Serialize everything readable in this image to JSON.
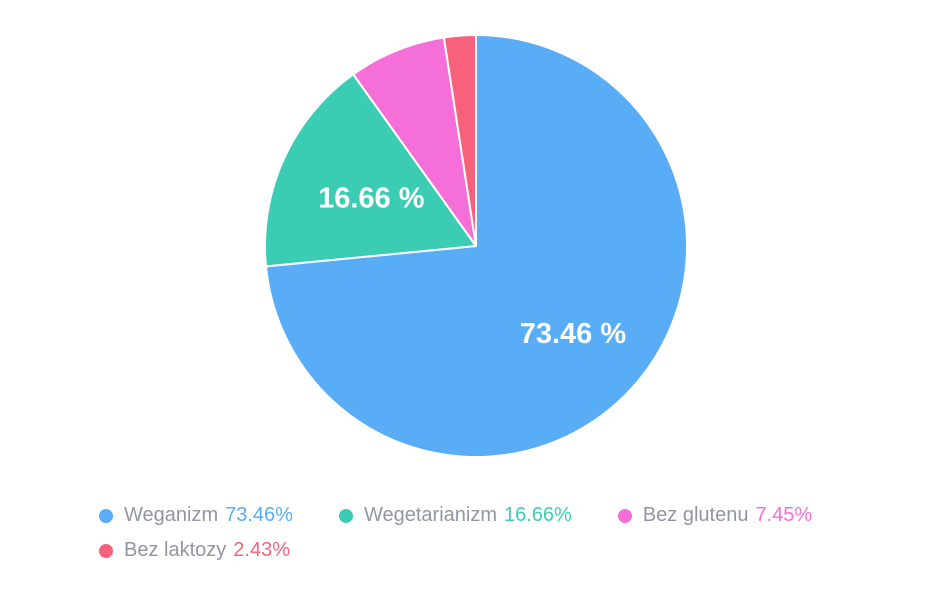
{
  "chart_data": {
    "type": "pie",
    "title": "",
    "legend_position": "bottom",
    "direction": "clockwise",
    "start_angle_deg": 0,
    "background": "#ffffff",
    "slice_border_color": "#ffffff",
    "slice_border_width": 2,
    "label_color": "#ffffff",
    "legend_text_color": "#9195a6",
    "pie_center": {
      "x": 476,
      "y": 246,
      "radius": 211
    },
    "series": [
      {
        "name": "Weganizm",
        "value": 73.46,
        "color": "#59acf6",
        "legend_value": "73.46%",
        "slice_label": "73.46 %",
        "label_radius_factor": 0.62
      },
      {
        "name": "Wegetarianizm",
        "value": 16.66,
        "color": "#3bcdb4",
        "legend_value": "16.66%",
        "slice_label": "16.66 %",
        "label_radius_factor": 0.545
      },
      {
        "name": "Bez glutenu",
        "value": 7.45,
        "color": "#f56fd9",
        "legend_value": "7.45%",
        "slice_label": null,
        "label_radius_factor": null
      },
      {
        "name": "Bez laktozy",
        "value": 2.43,
        "color": "#f8617b",
        "legend_value": "2.43%",
        "slice_label": null,
        "label_radius_factor": null
      }
    ]
  }
}
